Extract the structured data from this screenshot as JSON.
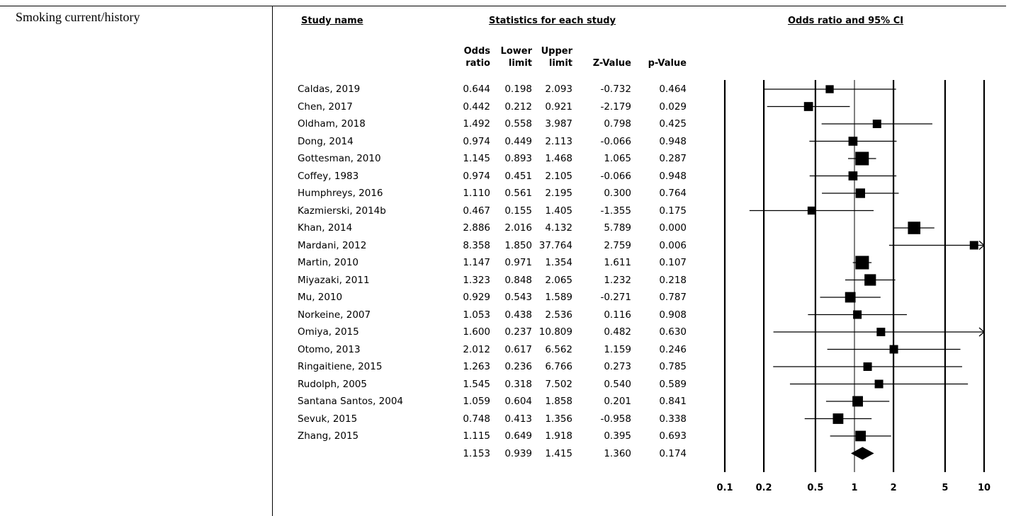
{
  "category": "Smoking current/history",
  "headers": {
    "study_name": "Study name",
    "statistics": "Statistics for each study",
    "plot": "Odds ratio and 95% CI"
  },
  "columns": {
    "odds": [
      "Odds",
      "ratio"
    ],
    "lower": [
      "Lower",
      "limit"
    ],
    "upper": [
      "Upper",
      "limit"
    ],
    "z": [
      "Z-Value"
    ],
    "p": [
      "p-Value"
    ]
  },
  "chart_data": {
    "type": "forest",
    "xscale": "log",
    "xlim": [
      0.1,
      10
    ],
    "xticks": [
      "0.1",
      "0.2",
      "0.5",
      "1",
      "2",
      "5",
      "10"
    ],
    "null_value": 1,
    "studies": [
      {
        "name": "Caldas, 2019",
        "or": "0.644",
        "lower": "0.198",
        "upper": "2.093",
        "z": "-0.732",
        "p": "0.464",
        "weight": 0.45
      },
      {
        "name": "Chen, 2017",
        "or": "0.442",
        "lower": "0.212",
        "upper": "0.921",
        "z": "-2.179",
        "p": "0.029",
        "weight": 0.55
      },
      {
        "name": "Oldham, 2018",
        "or": "1.492",
        "lower": "0.558",
        "upper": "3.987",
        "z": "0.798",
        "p": "0.425",
        "weight": 0.5
      },
      {
        "name": "Dong, 2014",
        "or": "0.974",
        "lower": "0.449",
        "upper": "2.113",
        "z": "-0.066",
        "p": "0.948",
        "weight": 0.55
      },
      {
        "name": "Gottesman, 2010",
        "or": "1.145",
        "lower": "0.893",
        "upper": "1.468",
        "z": "1.065",
        "p": "0.287",
        "weight": 1.0
      },
      {
        "name": "Coffey, 1983",
        "or": "0.974",
        "lower": "0.451",
        "upper": "2.105",
        "z": "-0.066",
        "p": "0.948",
        "weight": 0.55
      },
      {
        "name": "Humphreys, 2016",
        "or": "1.110",
        "lower": "0.561",
        "upper": "2.195",
        "z": "0.300",
        "p": "0.764",
        "weight": 0.6
      },
      {
        "name": "Kazmierski, 2014b",
        "or": "0.467",
        "lower": "0.155",
        "upper": "1.405",
        "z": "-1.355",
        "p": "0.175",
        "weight": 0.45
      },
      {
        "name": "Khan, 2014",
        "or": "2.886",
        "lower": "2.016",
        "upper": "4.132",
        "z": "5.789",
        "p": "0.000",
        "weight": 0.9
      },
      {
        "name": "Mardani, 2012",
        "or": "8.358",
        "lower": "1.850",
        "upper": "37.764",
        "z": "2.759",
        "p": "0.006",
        "weight": 0.5
      },
      {
        "name": "Martin, 2010",
        "or": "1.147",
        "lower": "0.971",
        "upper": "1.354",
        "z": "1.611",
        "p": "0.107",
        "weight": 1.0
      },
      {
        "name": "Miyazaki, 2011",
        "or": "1.323",
        "lower": "0.848",
        "upper": "2.065",
        "z": "1.232",
        "p": "0.218",
        "weight": 0.8
      },
      {
        "name": "Mu, 2010",
        "or": "0.929",
        "lower": "0.543",
        "upper": "1.589",
        "z": "-0.271",
        "p": "0.787",
        "weight": 0.7
      },
      {
        "name": "Norkeine, 2007",
        "or": "1.053",
        "lower": "0.438",
        "upper": "2.536",
        "z": "0.116",
        "p": "0.908",
        "weight": 0.5
      },
      {
        "name": "Omiya, 2015",
        "or": "1.600",
        "lower": "0.237",
        "upper": "10.809",
        "z": "0.482",
        "p": "0.630",
        "weight": 0.5
      },
      {
        "name": "Otomo, 2013",
        "or": "2.012",
        "lower": "0.617",
        "upper": "6.562",
        "z": "1.159",
        "p": "0.246",
        "weight": 0.5
      },
      {
        "name": "Ringaitiene, 2015",
        "or": "1.263",
        "lower": "0.236",
        "upper": "6.766",
        "z": "0.273",
        "p": "0.785",
        "weight": 0.5
      },
      {
        "name": "Rudolph, 2005",
        "or": "1.545",
        "lower": "0.318",
        "upper": "7.502",
        "z": "0.540",
        "p": "0.589",
        "weight": 0.5
      },
      {
        "name": "Santana Santos, 2004",
        "or": "1.059",
        "lower": "0.604",
        "upper": "1.858",
        "z": "0.201",
        "p": "0.841",
        "weight": 0.7
      },
      {
        "name": "Sevuk, 2015",
        "or": "0.748",
        "lower": "0.413",
        "upper": "1.356",
        "z": "-0.958",
        "p": "0.338",
        "weight": 0.7
      },
      {
        "name": "Zhang, 2015",
        "or": "1.115",
        "lower": "0.649",
        "upper": "1.918",
        "z": "0.395",
        "p": "0.693",
        "weight": 0.7
      }
    ],
    "pooled": {
      "name": "",
      "or": "1.153",
      "lower": "0.939",
      "upper": "1.415",
      "z": "1.360",
      "p": "0.174"
    }
  }
}
